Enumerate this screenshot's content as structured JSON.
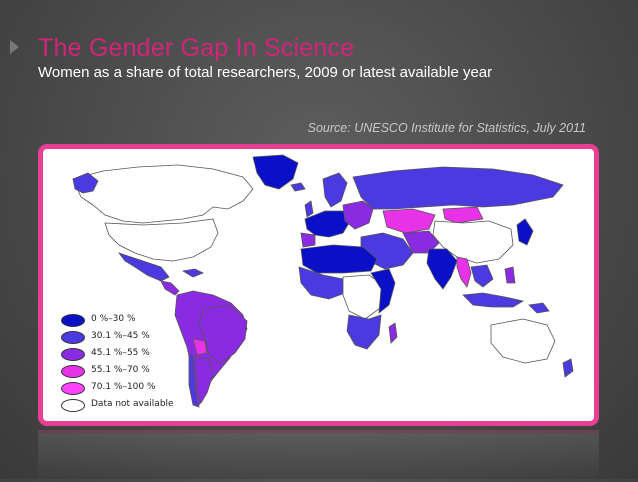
{
  "slide": {
    "title": "The Gender Gap In Science",
    "subtitle": "Women as a share of total researchers, 2009 or latest available year",
    "source": "Source: UNESCO Institute for Statistics, July 2011"
  },
  "legend": [
    {
      "label": "0 %–30 %",
      "color": "#0a10c8"
    },
    {
      "label": "30.1 %–45 %",
      "color": "#4a3ae0"
    },
    {
      "label": "45.1 %–55 %",
      "color": "#8a2be2"
    },
    {
      "label": "55.1 %–70 %",
      "color": "#e832e8"
    },
    {
      "label": "70.1 %–100 %",
      "color": "#ff44ff"
    },
    {
      "label": "Data not available",
      "color": "#ffffff"
    }
  ],
  "map": {
    "land_outline": "#555555",
    "ocean": "#ffffff"
  }
}
